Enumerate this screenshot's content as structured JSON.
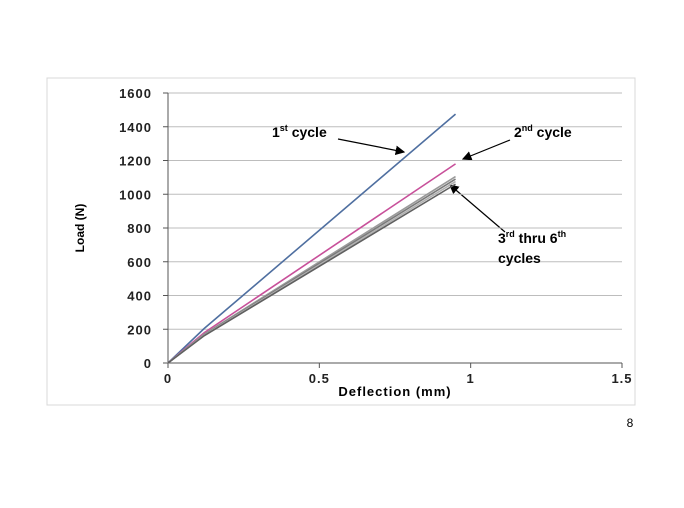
{
  "page_number": "8",
  "chart_data": {
    "type": "line",
    "x_label": "Deflection (mm)",
    "y_label": "Load (N)",
    "x": [
      0,
      0.12,
      0.95
    ],
    "series": [
      {
        "color": "#4f6fa0",
        "values": [
          0,
          205,
          1475
        ]
      },
      {
        "color": "#c8509a",
        "values": [
          0,
          180,
          1180
        ]
      },
      {
        "color": "#9a9a9a",
        "values": [
          0,
          172,
          1105
        ]
      },
      {
        "color": "#7a7a7a",
        "values": [
          0,
          168,
          1090
        ]
      },
      {
        "color": "#b0b0b0",
        "values": [
          0,
          165,
          1075
        ]
      },
      {
        "color": "#606060",
        "values": [
          0,
          162,
          1060
        ]
      }
    ],
    "xlim": [
      0,
      1.5
    ],
    "xticks": [
      0,
      0.5,
      1,
      1.5
    ],
    "ylim": [
      0,
      1600
    ],
    "yticks": [
      0,
      200,
      400,
      600,
      800,
      1000,
      1200,
      1400,
      1600
    ],
    "grid": true,
    "annotations": [
      {
        "lines": [
          [
            "1",
            "st",
            " cycle"
          ]
        ]
      },
      {
        "lines": [
          [
            "2",
            "nd",
            " cycle"
          ]
        ]
      },
      {
        "lines": [
          [
            "3",
            "rd",
            " thru 6",
            "th"
          ],
          [
            "cycles"
          ]
        ]
      }
    ]
  }
}
